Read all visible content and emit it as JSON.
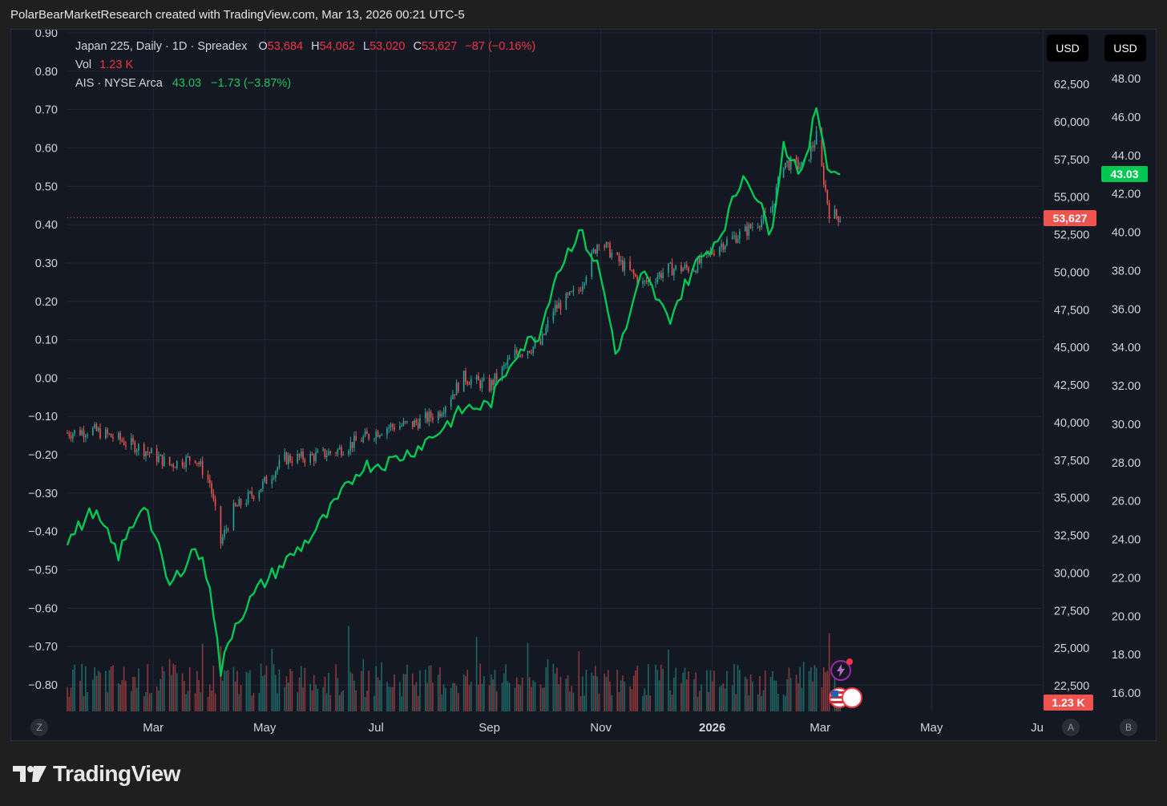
{
  "header": {
    "title": "PolarBearMarketResearch created with TradingView.com, Mar 13, 2026 00:21 UTC-5"
  },
  "legend": {
    "symbol": "Japan 225, Daily · 1D · Spreadex",
    "o_label": "O",
    "o_value": "53,684",
    "h_label": "H",
    "h_value": "54,062",
    "l_label": "L",
    "l_value": "53,020",
    "c_label": "C",
    "c_value": "53,627",
    "change": "−87 (−0.16%)",
    "vol_label": "Vol",
    "vol_value": "1.23 K",
    "overlay_symbol": "AIS · NYSE Arca",
    "overlay_value": "43.03",
    "overlay_change": "−1.73 (−3.87%)"
  },
  "currency": {
    "scale_a": "USD",
    "scale_b": "USD"
  },
  "tags": {
    "japan_last": "53,627",
    "ais_last": "43.03",
    "volume_last": "1.23 K"
  },
  "axis_buttons": {
    "left": "Z",
    "right_a": "A",
    "right_b": "B"
  },
  "colors": {
    "background": "#141823",
    "up": "#26a69a",
    "down": "#ef5350",
    "overlay_line": "#00c853",
    "grid": "#232837",
    "axis_text": "#d1d4dc"
  },
  "footer": {
    "brand": "TradingView"
  },
  "chart_data": {
    "type": "line",
    "title": "Japan 225, Daily · 1D · Spreadex",
    "x_ticks": [
      "Mar",
      "May",
      "Jul",
      "Sep",
      "Nov",
      "2026",
      "Mar",
      "May",
      "Ju"
    ],
    "x_range": [
      "2025-01-13",
      "2026-06-30"
    ],
    "left_axis": {
      "ticks": [
        "0.90",
        "0.80",
        "0.70",
        "0.60",
        "0.50",
        "0.40",
        "0.30",
        "0.20",
        "0.10",
        "0.00",
        "−0.10",
        "−0.20",
        "−0.30",
        "−0.40",
        "−0.50",
        "−0.60",
        "−0.70",
        "−0.80"
      ],
      "range": [
        -0.8,
        0.9
      ]
    },
    "right_axis_a": {
      "currency": "USD",
      "ticks": [
        "62,500",
        "60,000",
        "57,500",
        "55,000",
        "52,500",
        "50,000",
        "47,500",
        "45,000",
        "42,500",
        "40,000",
        "37,500",
        "35,000",
        "32,500",
        "30,000",
        "27,500",
        "25,000",
        "22,500"
      ],
      "range": [
        22500,
        62500
      ]
    },
    "right_axis_b": {
      "currency": "USD",
      "ticks": [
        "48.00",
        "46.00",
        "44.00",
        "42.00",
        "40.00",
        "38.00",
        "36.00",
        "34.00",
        "32.00",
        "30.00",
        "28.00",
        "26.00",
        "24.00",
        "22.00",
        "20.00",
        "18.00",
        "16.00"
      ],
      "range": [
        16,
        48
      ]
    },
    "series": [
      {
        "name": "Japan 225",
        "kind": "candles",
        "axis": "right_axis_a",
        "last": 53627,
        "points": [
          [
            "2025-01-13",
            39300
          ],
          [
            "2025-01-27",
            39500
          ],
          [
            "2025-02-10",
            38900
          ],
          [
            "2025-02-24",
            38200
          ],
          [
            "2025-03-10",
            37200
          ],
          [
            "2025-03-24",
            37700
          ],
          [
            "2025-04-01",
            36000
          ],
          [
            "2025-04-07",
            32000
          ],
          [
            "2025-04-14",
            34200
          ],
          [
            "2025-04-28",
            35600
          ],
          [
            "2025-05-12",
            37600
          ],
          [
            "2025-05-26",
            37700
          ],
          [
            "2025-06-09",
            38100
          ],
          [
            "2025-06-23",
            38900
          ],
          [
            "2025-07-07",
            39700
          ],
          [
            "2025-07-21",
            39900
          ],
          [
            "2025-08-04",
            40600
          ],
          [
            "2025-08-18",
            43000
          ],
          [
            "2025-09-01",
            42400
          ],
          [
            "2025-09-15",
            44600
          ],
          [
            "2025-09-29",
            45200
          ],
          [
            "2025-10-06",
            47500
          ],
          [
            "2025-10-20",
            48800
          ],
          [
            "2025-10-31",
            52200
          ],
          [
            "2025-11-10",
            50800
          ],
          [
            "2025-11-24",
            49200
          ],
          [
            "2025-12-08",
            50200
          ],
          [
            "2025-12-22",
            50300
          ],
          [
            "2026-01-05",
            51800
          ],
          [
            "2026-01-19",
            52700
          ],
          [
            "2026-02-02",
            54000
          ],
          [
            "2026-02-09",
            57300
          ],
          [
            "2026-02-20",
            57000
          ],
          [
            "2026-02-27",
            59000
          ],
          [
            "2026-03-06",
            54000
          ],
          [
            "2026-03-12",
            53627
          ]
        ]
      },
      {
        "name": "AIS",
        "kind": "line",
        "axis": "right_axis_b",
        "last": 43.03,
        "points": [
          [
            "2025-01-13",
            23.9
          ],
          [
            "2025-01-27",
            25.5
          ],
          [
            "2025-02-10",
            23.2
          ],
          [
            "2025-02-24",
            26.0
          ],
          [
            "2025-03-10",
            21.5
          ],
          [
            "2025-03-24",
            23.6
          ],
          [
            "2025-04-01",
            21.8
          ],
          [
            "2025-04-07",
            17.1
          ],
          [
            "2025-04-14",
            19.5
          ],
          [
            "2025-04-28",
            21.5
          ],
          [
            "2025-05-12",
            22.8
          ],
          [
            "2025-05-26",
            24.1
          ],
          [
            "2025-06-09",
            25.9
          ],
          [
            "2025-06-23",
            27.8
          ],
          [
            "2025-07-07",
            28.0
          ],
          [
            "2025-07-21",
            28.6
          ],
          [
            "2025-08-04",
            29.6
          ],
          [
            "2025-08-18",
            30.8
          ],
          [
            "2025-09-01",
            31.0
          ],
          [
            "2025-09-15",
            33.7
          ],
          [
            "2025-09-29",
            34.8
          ],
          [
            "2025-10-06",
            37.5
          ],
          [
            "2025-10-20",
            40.1
          ],
          [
            "2025-10-31",
            38.1
          ],
          [
            "2025-11-10",
            33.5
          ],
          [
            "2025-11-24",
            37.9
          ],
          [
            "2025-12-08",
            35.4
          ],
          [
            "2025-12-22",
            38.2
          ],
          [
            "2026-01-05",
            39.8
          ],
          [
            "2026-01-19",
            43.2
          ],
          [
            "2026-02-02",
            40.0
          ],
          [
            "2026-02-09",
            44.5
          ],
          [
            "2026-02-20",
            43.0
          ],
          [
            "2026-02-27",
            46.6
          ],
          [
            "2026-03-06",
            43.2
          ],
          [
            "2026-03-12",
            43.03
          ]
        ]
      }
    ],
    "volume": {
      "label": "Vol",
      "last": "1.23 K",
      "note": "relative daily volume bars along bottom of chart"
    },
    "grid": true,
    "legend_position": "top-left"
  }
}
